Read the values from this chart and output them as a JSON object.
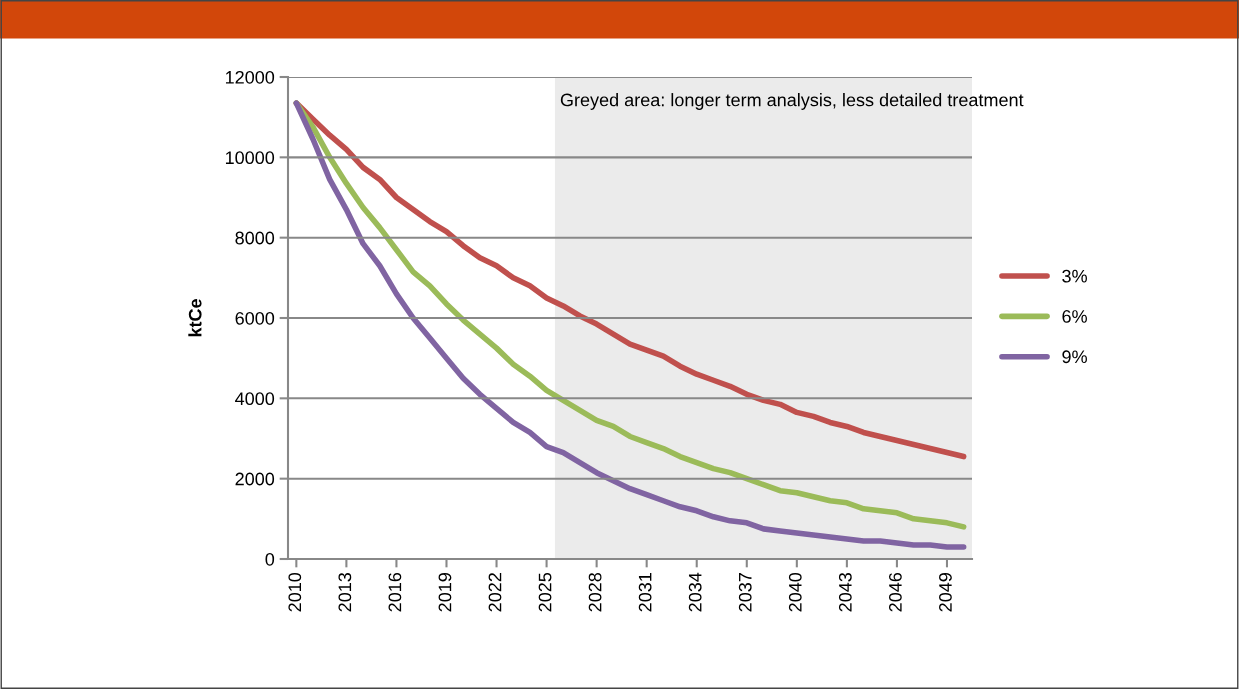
{
  "chart_data": {
    "type": "line",
    "ylabel": "ktCe",
    "x": [
      2010,
      2011,
      2012,
      2013,
      2014,
      2015,
      2016,
      2017,
      2018,
      2019,
      2020,
      2021,
      2022,
      2023,
      2024,
      2025,
      2026,
      2027,
      2028,
      2029,
      2030,
      2031,
      2032,
      2033,
      2034,
      2035,
      2036,
      2037,
      2038,
      2039,
      2040,
      2041,
      2042,
      2043,
      2044,
      2045,
      2046,
      2047,
      2048,
      2049,
      2050
    ],
    "series": [
      {
        "name": "3%",
        "color": "#c0504d",
        "values": [
          11350,
          10950,
          10550,
          10200,
          9750,
          9450,
          9000,
          8700,
          8400,
          8150,
          7800,
          7500,
          7300,
          7000,
          6800,
          6500,
          6300,
          6050,
          5850,
          5600,
          5350,
          5200,
          5050,
          4800,
          4600,
          4450,
          4300,
          4100,
          3950,
          3850,
          3650,
          3550,
          3400,
          3300,
          3150,
          3050,
          2950,
          2850,
          2750,
          2650,
          2550
        ]
      },
      {
        "name": "6%",
        "color": "#9bbb59",
        "values": [
          11350,
          10750,
          10000,
          9350,
          8750,
          8250,
          7700,
          7150,
          6800,
          6350,
          5950,
          5600,
          5250,
          4850,
          4550,
          4200,
          3950,
          3700,
          3450,
          3300,
          3050,
          2900,
          2750,
          2550,
          2400,
          2250,
          2150,
          2000,
          1850,
          1700,
          1650,
          1550,
          1450,
          1400,
          1250,
          1200,
          1150,
          1000,
          950,
          900,
          800
        ]
      },
      {
        "name": "9%",
        "color": "#8064a2",
        "values": [
          11350,
          10450,
          9450,
          8700,
          7850,
          7300,
          6600,
          6000,
          5500,
          5000,
          4500,
          4100,
          3750,
          3400,
          3150,
          2800,
          2650,
          2400,
          2150,
          1950,
          1750,
          1600,
          1450,
          1300,
          1200,
          1050,
          950,
          900,
          750,
          700,
          650,
          600,
          550,
          500,
          450,
          450,
          400,
          350,
          350,
          300,
          300
        ]
      }
    ],
    "xlim": [
      2009.5,
      2050.5
    ],
    "xticks": [
      2010,
      2013,
      2016,
      2019,
      2022,
      2025,
      2028,
      2031,
      2034,
      2037,
      2040,
      2043,
      2046,
      2049
    ],
    "ylim": [
      0,
      12000
    ],
    "yticks": [
      0,
      2000,
      4000,
      6000,
      8000,
      10000,
      12000
    ],
    "bands": [
      {
        "axis": "x",
        "from": 2025.5,
        "to": 2050.5,
        "label": "Greyed area: longer term analysis, less detailed treatment",
        "color": "#ebebeb"
      }
    ],
    "grid": "y",
    "legend": "right",
    "line_style": "solid",
    "marker": "none"
  }
}
